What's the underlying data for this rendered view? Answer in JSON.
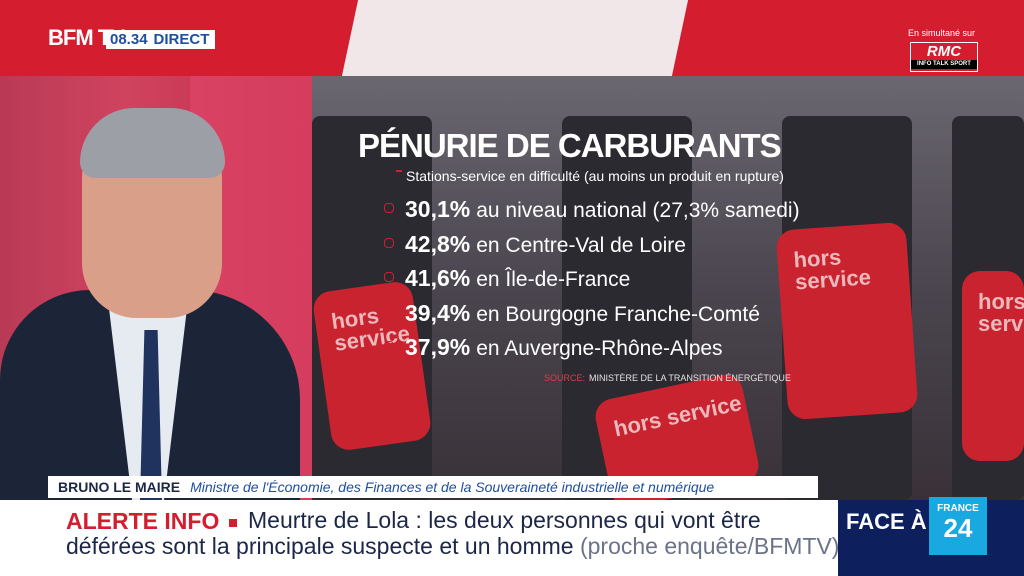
{
  "channel": {
    "logo": "BFM TV.",
    "time": "08.34",
    "live_label": "DIRECT",
    "simulcast_label": "En simultané sur",
    "partner_logo": "RMC",
    "partner_tagline": "INFO TALK SPORT"
  },
  "graphic": {
    "title": "PÉNURIE DE CARBURANTS",
    "subtitle": "Stations-service en difficulté (au moins un produit en rupture)",
    "stats": [
      {
        "value": "30,1%",
        "label": "au niveau national (27,3% samedi)"
      },
      {
        "value": "42,8%",
        "label": "en Centre-Val de Loire"
      },
      {
        "value": "41,6%",
        "label": "en Île-de-France"
      },
      {
        "value": "39,4%",
        "label": "en Bourgogne Franche-Comté"
      },
      {
        "value": "37,9%",
        "label": "en Auvergne-Rhône-Alpes"
      }
    ],
    "source_label": "SOURCE:",
    "source": "MINISTÈRE DE LA TRANSITION ÉNERGÉTIQUE",
    "background_signs": [
      "hors service",
      "hors service",
      "hors service",
      "hors service"
    ]
  },
  "lower_third": {
    "name": "BRUNO LE MAIRE",
    "role": "Ministre de l'Économie, des Finances et de la Souveraineté industrielle et numérique"
  },
  "ticker": {
    "alert_label": "ALERTE INFO",
    "line1": "Meurtre de Lola : les deux personnes qui vont être",
    "line2": "déférées sont la principale suspecte et un homme",
    "source_note": "(proche enquête/BFMTV)"
  },
  "promo": {
    "text": "FACE À F",
    "logo_top": "FRANCE",
    "logo_num": "24"
  },
  "colors": {
    "brand_red": "#d41d2e",
    "brand_blue": "#1f4fa0",
    "navy": "#0d1f5c"
  }
}
